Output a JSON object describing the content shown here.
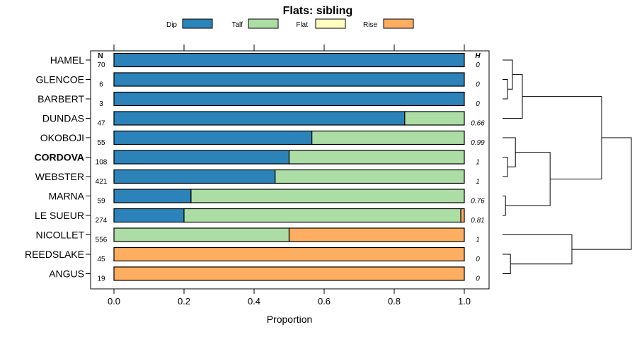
{
  "chart_data": {
    "type": "bar",
    "orientation": "horizontal-stacked",
    "title": "Flats: sibling",
    "xlabel": "Proportion",
    "xlim": [
      0,
      1
    ],
    "xticks": [
      "0.0",
      "0.2",
      "0.4",
      "0.6",
      "0.8",
      "1.0"
    ],
    "n_header": "N",
    "h_header": "H",
    "legend": [
      {
        "name": "Dip",
        "color": "#2b83ba"
      },
      {
        "name": "Talf",
        "color": "#abdda4"
      },
      {
        "name": "Flat",
        "color": "#ffffbf"
      },
      {
        "name": "Rise",
        "color": "#fdae61"
      }
    ],
    "categories": [
      "HAMEL",
      "GLENCOE",
      "BARBERT",
      "DUNDAS",
      "OKOBOJI",
      "CORDOVA",
      "WEBSTER",
      "MARNA",
      "LE SUEUR",
      "NICOLLET",
      "REEDSLAKE",
      "ANGUS"
    ],
    "highlight": "CORDOVA",
    "n": [
      "70",
      "6",
      "3",
      "47",
      "55",
      "108",
      "421",
      "59",
      "274",
      "556",
      "45",
      "19"
    ],
    "h": [
      "0",
      "0",
      "0",
      "0.66",
      "0.99",
      "1",
      "1",
      "0.76",
      "0.81",
      "1",
      "0",
      "0"
    ],
    "series": [
      {
        "name": "Dip",
        "values": [
          1,
          1,
          1,
          0.83,
          0.565,
          0.5,
          0.46,
          0.22,
          0.2,
          0,
          0,
          0
        ]
      },
      {
        "name": "Talf",
        "values": [
          0,
          0,
          0,
          0.17,
          0.435,
          0.5,
          0.54,
          0.78,
          0.79,
          0.5,
          0,
          0
        ]
      },
      {
        "name": "Flat",
        "values": [
          0,
          0,
          0,
          0,
          0,
          0,
          0,
          0,
          0,
          0,
          0,
          0
        ]
      },
      {
        "name": "Rise",
        "values": [
          0,
          0,
          0,
          0,
          0,
          0,
          0,
          0,
          0.01,
          0.5,
          1,
          1
        ]
      }
    ],
    "dendrogram": {
      "merges": [
        {
          "a": "GLENCOE",
          "b": "BARBERT",
          "height": 0.05
        },
        {
          "a": "HAMEL",
          "b": 0,
          "height": 0.1
        },
        {
          "a": 1,
          "b": "DUNDAS",
          "height": 0.2
        },
        {
          "a": "CORDOVA",
          "b": "WEBSTER",
          "height": 0.05
        },
        {
          "a": "OKOBOJI",
          "b": 3,
          "height": 0.13
        },
        {
          "a": "MARNA",
          "b": "LE SUEUR",
          "height": 0.03
        },
        {
          "a": 4,
          "b": 5,
          "height": 0.48
        },
        {
          "a": 2,
          "b": 6,
          "height": 1.0
        },
        {
          "a": "REEDSLAKE",
          "b": "ANGUS",
          "height": 0.08
        },
        {
          "a": "NICOLLET",
          "b": 8,
          "height": 0.7
        },
        {
          "a": 7,
          "b": 9,
          "height": 1.3
        }
      ]
    }
  }
}
